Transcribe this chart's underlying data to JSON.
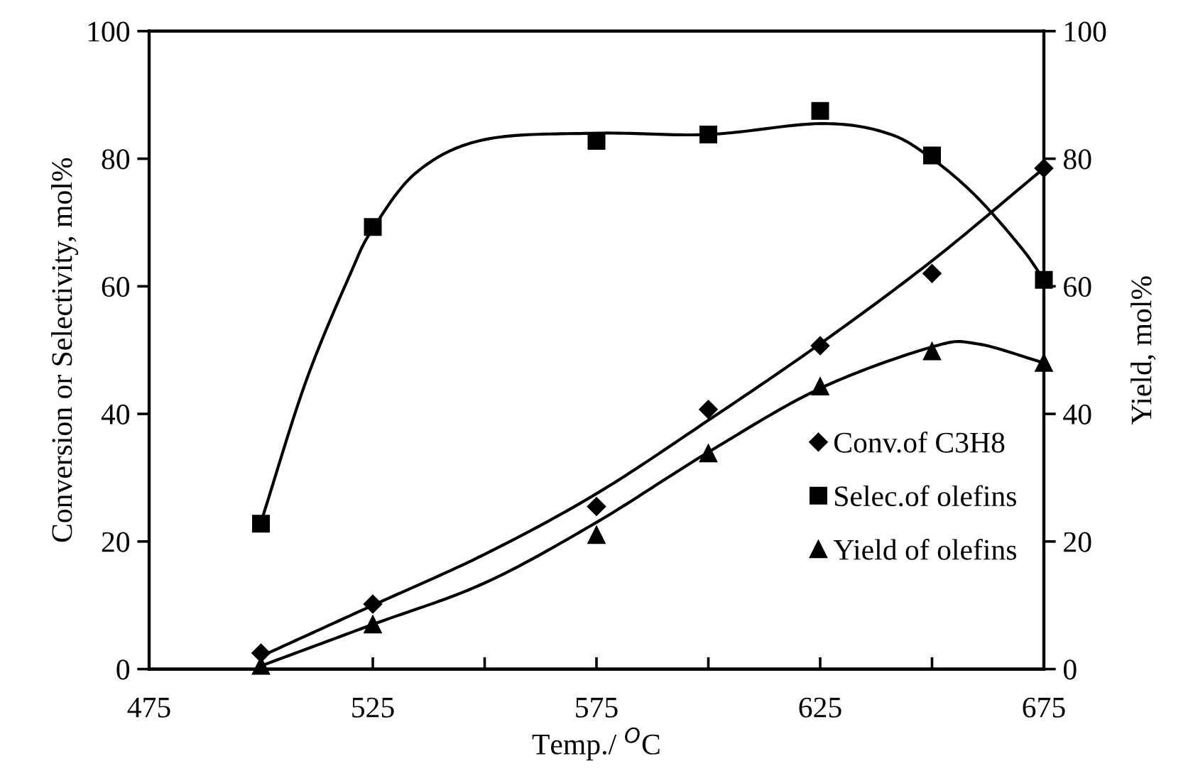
{
  "chart_data": {
    "type": "scatter",
    "xlabel": "Temp./ $^{O}$C",
    "ylabel": "Conversion or Selectivity, mol%",
    "y2label": "Yield, mol%",
    "xlim": [
      475,
      675
    ],
    "xticks": [
      475,
      {
        "value": 500,
        "label": null
      },
      525,
      {
        "value": 550,
        "label": null
      },
      575,
      {
        "value": 600,
        "label": null
      },
      625,
      {
        "value": 650,
        "label": null
      },
      675
    ],
    "ylim": [
      0,
      100
    ],
    "yticks": [
      0,
      20,
      40,
      60,
      80,
      100
    ],
    "y2lim": [
      0,
      100
    ],
    "y2ticks": [
      0,
      20,
      40,
      60,
      80,
      100
    ],
    "grid": false,
    "legend": "lower right",
    "series": [
      {
        "name": "Conv.of C3H8",
        "marker": "diamond",
        "color": "#000000",
        "x": [
          500,
          525,
          575,
          600,
          625,
          650,
          675
        ],
        "values": [
          2.5,
          10.2,
          25.5,
          40.7,
          50.7,
          62,
          78.5
        ]
      },
      {
        "name": "Selec.of olefins",
        "marker": "square",
        "color": "#000000",
        "x": [
          500,
          525,
          575,
          600,
          625,
          650,
          675
        ],
        "values": [
          22.8,
          69.3,
          82.8,
          83.8,
          87.5,
          80.5,
          61
        ]
      },
      {
        "name": "Yield of olefins",
        "marker": "triangle",
        "color": "#000000",
        "x": [
          500,
          525,
          575,
          600,
          625,
          650,
          675
        ],
        "values": [
          0.5,
          7,
          21,
          33.8,
          44.3,
          49.8,
          48
        ]
      },
      {
        "type": "line",
        "color": "#000000",
        "x": [
          500,
          525,
          550,
          575,
          600,
          625,
          650,
          675
        ],
        "values": [
          2,
          10,
          18,
          27.5,
          39,
          51,
          64,
          78.5
        ]
      },
      {
        "type": "line",
        "color": "#000000",
        "x": [
          500,
          510,
          520,
          525,
          535,
          550,
          575,
          600,
          625,
          640,
          650,
          660,
          670,
          675
        ],
        "values": [
          23,
          45,
          62,
          69,
          78,
          83,
          84,
          83.8,
          85.5,
          84,
          80,
          74,
          66,
          61
        ]
      },
      {
        "type": "line",
        "color": "#000000",
        "x": [
          500,
          525,
          550,
          575,
          600,
          625,
          650,
          660,
          675
        ],
        "values": [
          0.5,
          7,
          13.5,
          23,
          34,
          44,
          50.5,
          51,
          48
        ]
      }
    ]
  }
}
